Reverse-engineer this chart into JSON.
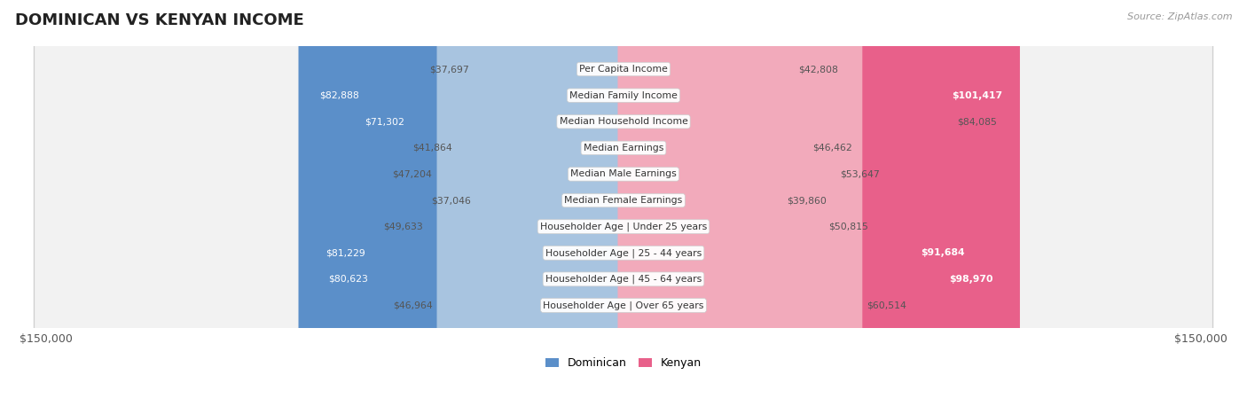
{
  "title": "DOMINICAN VS KENYAN INCOME",
  "source": "Source: ZipAtlas.com",
  "categories": [
    "Per Capita Income",
    "Median Family Income",
    "Median Household Income",
    "Median Earnings",
    "Median Male Earnings",
    "Median Female Earnings",
    "Householder Age | Under 25 years",
    "Householder Age | 25 - 44 years",
    "Householder Age | 45 - 64 years",
    "Householder Age | Over 65 years"
  ],
  "dominican_values": [
    37697,
    82888,
    71302,
    41864,
    47204,
    37046,
    49633,
    81229,
    80623,
    46964
  ],
  "kenyan_values": [
    42808,
    101417,
    84085,
    46462,
    53647,
    39860,
    50815,
    91684,
    98970,
    60514
  ],
  "dominican_labels": [
    "$37,697",
    "$82,888",
    "$71,302",
    "$41,864",
    "$47,204",
    "$37,046",
    "$49,633",
    "$81,229",
    "$80,623",
    "$46,964"
  ],
  "kenyan_labels": [
    "$42,808",
    "$101,417",
    "$84,085",
    "$46,462",
    "$53,647",
    "$39,860",
    "$50,815",
    "$91,684",
    "$98,970",
    "$60,514"
  ],
  "max_value": 150000,
  "dominican_bar_color_light": "#a8c4e0",
  "dominican_bar_color_dark": "#5b8fc9",
  "kenyan_bar_color_light": "#f2aabb",
  "kenyan_bar_color_dark": "#e8608a",
  "dominican_high_threshold": 70000,
  "kenyan_high_threshold": 85000,
  "label_inside_color": "#ffffff",
  "label_outside_color": "#555555",
  "legend_dominican": "Dominican",
  "legend_kenyan": "Kenyan",
  "x_tick_left": "$150,000",
  "x_tick_right": "$150,000",
  "row_bg_color": "#f2f2f2",
  "row_border_color": "#d0d0d0"
}
